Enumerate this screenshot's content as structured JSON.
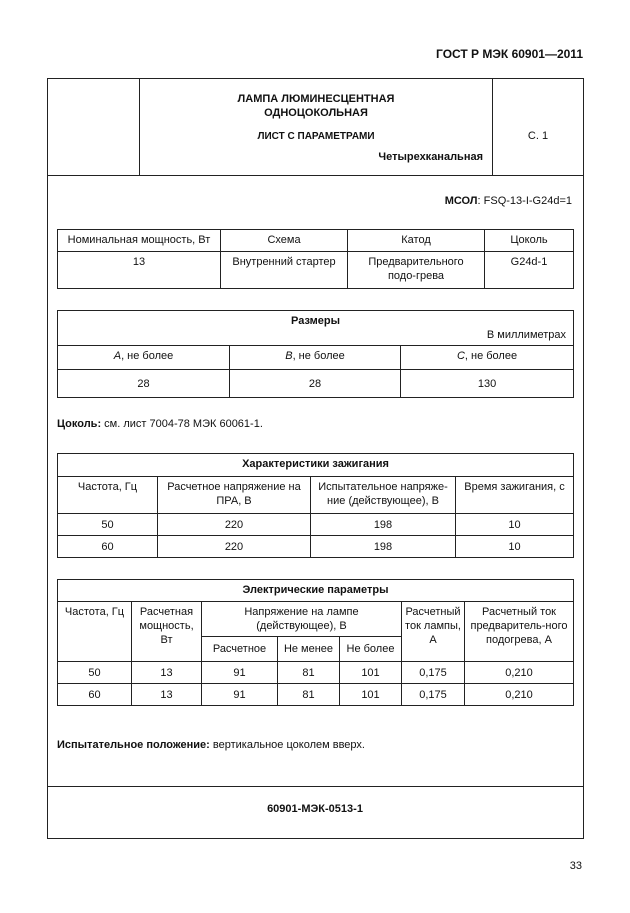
{
  "header": {
    "standard": "ГОСТ Р МЭК 60901—2011"
  },
  "title_block": {
    "title_line1": "ЛАМПА ЛЮМИНЕСЦЕНТНАЯ",
    "title_line2": "ОДНОЦОКОЛЬНАЯ",
    "subtitle": "ЛИСТ С ПАРАМЕТРАМИ",
    "type": "Четырехканальная",
    "sheet": "С. 1"
  },
  "designation": {
    "label": "МСОЛ",
    "value": ": FSQ-13-I-G24d=1"
  },
  "main_table": {
    "headers": [
      "Номинальная мощность, Вт",
      "Схема",
      "Катод",
      "Цоколь"
    ],
    "row": [
      "13",
      "Внутренний стартер",
      "Предварительного подо-грева",
      "G24d-1"
    ]
  },
  "dimensions": {
    "title": "Размеры",
    "units": "В миллиметрах",
    "headers": [
      {
        "var": "A",
        "rest": ", не более"
      },
      {
        "var": "B",
        "rest": ", не более"
      },
      {
        "var": "C",
        "rest": ", не более"
      }
    ],
    "values": [
      "28",
      "28",
      "130"
    ]
  },
  "cap_note": {
    "label": "Цоколь:",
    "text": " см. лист 7004-78 МЭК 60061-1."
  },
  "ignition": {
    "title": "Характеристики зажигания",
    "headers": [
      "Частота, Гц",
      "Расчетное напряжение на ПРА, В",
      "Испытательное напряже-ние (действующее), В",
      "Время зажигания, с"
    ],
    "rows": [
      [
        "50",
        "220",
        "198",
        "10"
      ],
      [
        "60",
        "220",
        "198",
        "10"
      ]
    ]
  },
  "electrical": {
    "title": "Электрические параметры",
    "headers": {
      "frequency": "Частота, Гц",
      "power": "Расчетная мощность, Вт",
      "voltage": "Напряжение на лампе (действующее), В",
      "voltage_sub": [
        "Расчетное",
        "Не менее",
        "Не более"
      ],
      "current": "Расчетный ток лампы, А",
      "preheat": "Расчетный ток предваритель-ного подогрева, А"
    },
    "rows": [
      [
        "50",
        "13",
        "91",
        "81",
        "101",
        "0,175",
        "0,210"
      ],
      [
        "60",
        "13",
        "91",
        "81",
        "101",
        "0,175",
        "0,210"
      ]
    ]
  },
  "test_position": {
    "label": "Испытательное положение:",
    "text": " вертикальное цоколем вверх."
  },
  "footer": {
    "code": "60901-МЭК-0513-1",
    "page_number": "33"
  }
}
